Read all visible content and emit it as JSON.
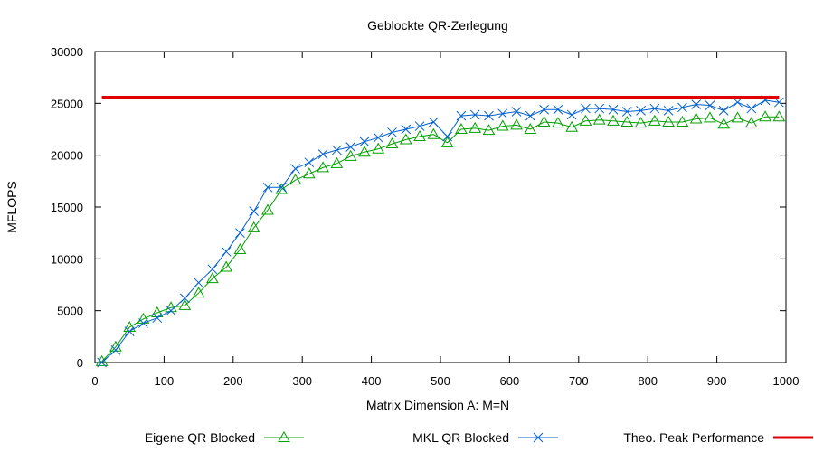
{
  "chart_data": {
    "type": "line",
    "title": "Geblockte QR-Zerlegung",
    "xlabel": "Matrix Dimension A: M=N",
    "ylabel": "MFLOPS",
    "xlim": [
      0,
      1000
    ],
    "ylim": [
      0,
      30000
    ],
    "x_ticks": [
      0,
      100,
      200,
      300,
      400,
      500,
      600,
      700,
      800,
      900,
      1000
    ],
    "y_ticks": [
      0,
      5000,
      10000,
      15000,
      20000,
      25000,
      30000
    ],
    "grid": false,
    "legend_position": "bottom",
    "series": [
      {
        "name": "Eigene QR Blocked",
        "color": "#00a000",
        "marker": "triangle-open",
        "x": [
          10,
          30,
          50,
          70,
          90,
          110,
          130,
          150,
          170,
          190,
          210,
          230,
          250,
          270,
          290,
          310,
          330,
          350,
          370,
          390,
          410,
          430,
          450,
          470,
          490,
          510,
          530,
          550,
          570,
          590,
          610,
          630,
          650,
          670,
          690,
          710,
          730,
          750,
          770,
          790,
          810,
          830,
          850,
          870,
          890,
          910,
          930,
          950,
          970,
          990
        ],
        "y": [
          100,
          1500,
          3400,
          4200,
          4800,
          5300,
          5500,
          6700,
          8100,
          9200,
          10900,
          13000,
          14700,
          16700,
          17600,
          18200,
          18800,
          19200,
          19900,
          20300,
          20600,
          21100,
          21500,
          21800,
          22000,
          21200,
          22500,
          22600,
          22400,
          22800,
          22900,
          22500,
          23200,
          23100,
          22700,
          23300,
          23400,
          23300,
          23200,
          23100,
          23300,
          23200,
          23200,
          23500,
          23600,
          23000,
          23600,
          23100,
          23700,
          23700
        ]
      },
      {
        "name": "MKL QR Blocked",
        "color": "#0060d0",
        "marker": "x",
        "x": [
          10,
          30,
          50,
          70,
          90,
          110,
          130,
          150,
          170,
          190,
          210,
          230,
          250,
          270,
          290,
          310,
          330,
          350,
          370,
          390,
          410,
          430,
          450,
          470,
          490,
          510,
          530,
          550,
          570,
          590,
          610,
          630,
          650,
          670,
          690,
          710,
          730,
          750,
          770,
          790,
          810,
          830,
          850,
          870,
          890,
          910,
          930,
          950,
          970,
          990
        ],
        "y": [
          0,
          1200,
          3000,
          3800,
          4300,
          5000,
          6200,
          7700,
          9000,
          10700,
          12500,
          14600,
          16900,
          16900,
          18700,
          19300,
          20100,
          20500,
          20800,
          21300,
          21700,
          22200,
          22500,
          22800,
          23200,
          21800,
          23800,
          23900,
          23800,
          24000,
          24200,
          23800,
          24400,
          24400,
          23900,
          24500,
          24500,
          24400,
          24200,
          24300,
          24500,
          24300,
          24600,
          24900,
          24800,
          24300,
          25100,
          24500,
          25300,
          25100
        ]
      },
      {
        "name": "Theo. Peak Performance",
        "color": "#e00000",
        "marker": "none",
        "x": [
          10,
          990
        ],
        "y": [
          25600,
          25600
        ]
      }
    ]
  }
}
